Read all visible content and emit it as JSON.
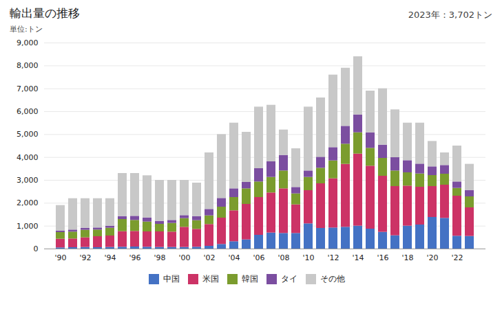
{
  "chart_data": {
    "type": "bar",
    "stacked": true,
    "title": "輸出量の推移",
    "subtitle": "単位:トン",
    "annotation": "2023年：3,702トン",
    "categories": [
      "'90",
      null,
      "'92",
      null,
      "'94",
      null,
      "'96",
      null,
      "'98",
      null,
      "'00",
      null,
      "'02",
      null,
      "'04",
      null,
      "'06",
      null,
      "'08",
      null,
      "'10",
      null,
      "'12",
      null,
      "'14",
      null,
      "'16",
      null,
      "'18",
      null,
      "'20",
      null,
      "'22",
      null
    ],
    "series": [
      {
        "name": "中国",
        "color": "#4472C4",
        "values": [
          50,
          60,
          70,
          60,
          70,
          80,
          90,
          80,
          70,
          70,
          70,
          80,
          120,
          200,
          320,
          400,
          600,
          700,
          680,
          680,
          1100,
          900,
          920,
          950,
          1000,
          870,
          730,
          580,
          1000,
          1050,
          1380,
          1340,
          560,
          550
        ]
      },
      {
        "name": "米国",
        "color": "#CC3366",
        "values": [
          380,
          380,
          420,
          480,
          500,
          680,
          680,
          670,
          680,
          670,
          880,
          780,
          950,
          1150,
          1350,
          1550,
          1650,
          1750,
          1950,
          1250,
          1450,
          1950,
          2150,
          2750,
          3150,
          2750,
          2450,
          2150,
          1750,
          1650,
          1350,
          1450,
          1750,
          1250
        ]
      },
      {
        "name": "韓国",
        "color": "#7B9C2E",
        "values": [
          290,
          300,
          330,
          290,
          340,
          530,
          480,
          430,
          330,
          380,
          380,
          380,
          380,
          480,
          580,
          680,
          680,
          680,
          780,
          480,
          580,
          680,
          780,
          880,
          930,
          780,
          780,
          680,
          580,
          580,
          480,
          480,
          340,
          480
        ]
      },
      {
        "name": "タイ",
        "color": "#7B4EA0",
        "values": [
          70,
          90,
          90,
          90,
          90,
          130,
          180,
          180,
          130,
          130,
          130,
          180,
          280,
          380,
          380,
          280,
          580,
          680,
          680,
          280,
          280,
          480,
          580,
          780,
          780,
          680,
          580,
          580,
          530,
          430,
          380,
          380,
          280,
          280
        ]
      },
      {
        "name": "その他",
        "color": "#C8C8C8",
        "values": [
          1110,
          1370,
          1290,
          1280,
          1200,
          1880,
          1870,
          1840,
          1790,
          1750,
          1540,
          1460,
          2470,
          2790,
          2870,
          2190,
          2690,
          2470,
          1110,
          1690,
          2790,
          2590,
          3170,
          2540,
          2540,
          1820,
          2460,
          2090,
          1640,
          1790,
          1110,
          550,
          1570,
          1142
        ]
      }
    ],
    "ylim": [
      0,
      9000
    ],
    "yticks": [
      0,
      {
        "value": 1000,
        "label": "1,000"
      },
      {
        "value": 2000,
        "label": "2,000"
      },
      {
        "value": 3000,
        "label": "3,000"
      },
      {
        "value": 4000,
        "label": "4,000"
      },
      {
        "value": 5000,
        "label": "5,000"
      },
      {
        "value": 6000,
        "label": "6,000"
      },
      {
        "value": 7000,
        "label": "7,000"
      },
      {
        "value": 8000,
        "label": "8,000"
      },
      {
        "value": 9000,
        "label": "9,000"
      }
    ],
    "grid": true
  }
}
